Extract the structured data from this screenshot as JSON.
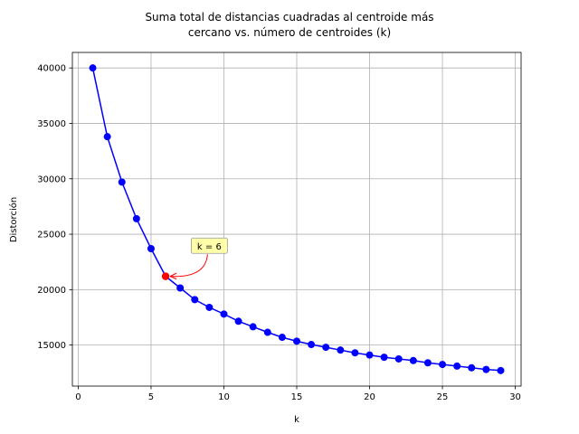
{
  "chart_data": {
    "type": "line",
    "title_lines": [
      "Suma total de distancias cuadradas al centroide más",
      "cercano vs. número de centroides (k)"
    ],
    "xlabel": "k",
    "ylabel": "Distorción",
    "xlim": [
      -0.4,
      30.4
    ],
    "ylim": [
      11300,
      41400
    ],
    "xticks": [
      0,
      5,
      10,
      15,
      20,
      25,
      30
    ],
    "yticks": [
      15000,
      20000,
      25000,
      30000,
      35000,
      40000
    ],
    "grid": true,
    "series": [
      {
        "color": "#0000ff",
        "marker": "circle",
        "x": [
          1,
          2,
          3,
          4,
          5,
          6,
          7,
          8,
          9,
          10,
          11,
          12,
          13,
          14,
          15,
          16,
          17,
          18,
          19,
          20,
          21,
          22,
          23,
          24,
          25,
          26,
          27,
          28,
          29
        ],
        "y": [
          40000,
          33800,
          29700,
          26400,
          23700,
          21200,
          20150,
          19100,
          18400,
          17800,
          17150,
          16650,
          16150,
          15700,
          15350,
          15050,
          14800,
          14550,
          14300,
          14100,
          13900,
          13750,
          13600,
          13400,
          13250,
          13100,
          12950,
          12800,
          12700
        ]
      }
    ],
    "highlight": {
      "x": 6,
      "y": 21200,
      "color": "#ff0000"
    },
    "annotation": {
      "text": "k = 6",
      "x": 6,
      "y": 21200,
      "text_x": 9.0,
      "text_y": 23800,
      "box_color": "#ffffaa",
      "arrow_color": "#ff0000"
    }
  }
}
